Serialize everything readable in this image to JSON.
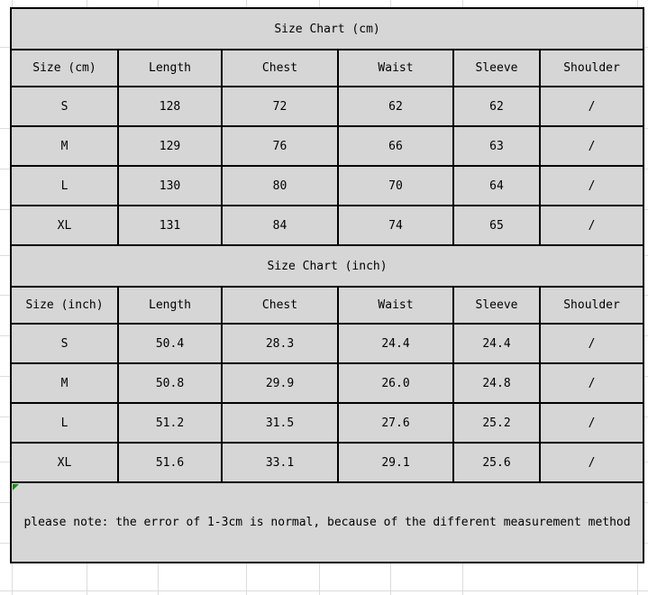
{
  "colors": {
    "cell_fill": "#d6d6d6",
    "table_border": "#000000",
    "page_background": "#ffffff",
    "margin_gridline": "#dcdcdc",
    "error_indicator": "#1e8a1e"
  },
  "chart_data": [
    {
      "type": "table",
      "title": "Size Chart (cm)",
      "columns": [
        "Size (cm)",
        "Length",
        "Chest",
        "Waist",
        "Sleeve",
        "Shoulder"
      ],
      "rows": [
        [
          "S",
          "128",
          "72",
          "62",
          "62",
          "/"
        ],
        [
          "M",
          "129",
          "76",
          "66",
          "63",
          "/"
        ],
        [
          "L",
          "130",
          "80",
          "70",
          "64",
          "/"
        ],
        [
          "XL",
          "131",
          "84",
          "74",
          "65",
          "/"
        ]
      ]
    },
    {
      "type": "table",
      "title": "Size Chart (inch)",
      "columns": [
        "Size (inch)",
        "Length",
        "Chest",
        "Waist",
        "Sleeve",
        "Shoulder"
      ],
      "rows": [
        [
          "S",
          "50.4",
          "28.3",
          "24.4",
          "24.4",
          "/"
        ],
        [
          "M",
          "50.8",
          "29.9",
          "26.0",
          "24.8",
          "/"
        ],
        [
          "L",
          "51.2",
          "31.5",
          "27.6",
          "25.2",
          "/"
        ],
        [
          "XL",
          "51.6",
          "33.1",
          "29.1",
          "25.6",
          "/"
        ]
      ]
    }
  ],
  "note": "please note: the error of 1-3cm is normal, because of the different measurement method"
}
